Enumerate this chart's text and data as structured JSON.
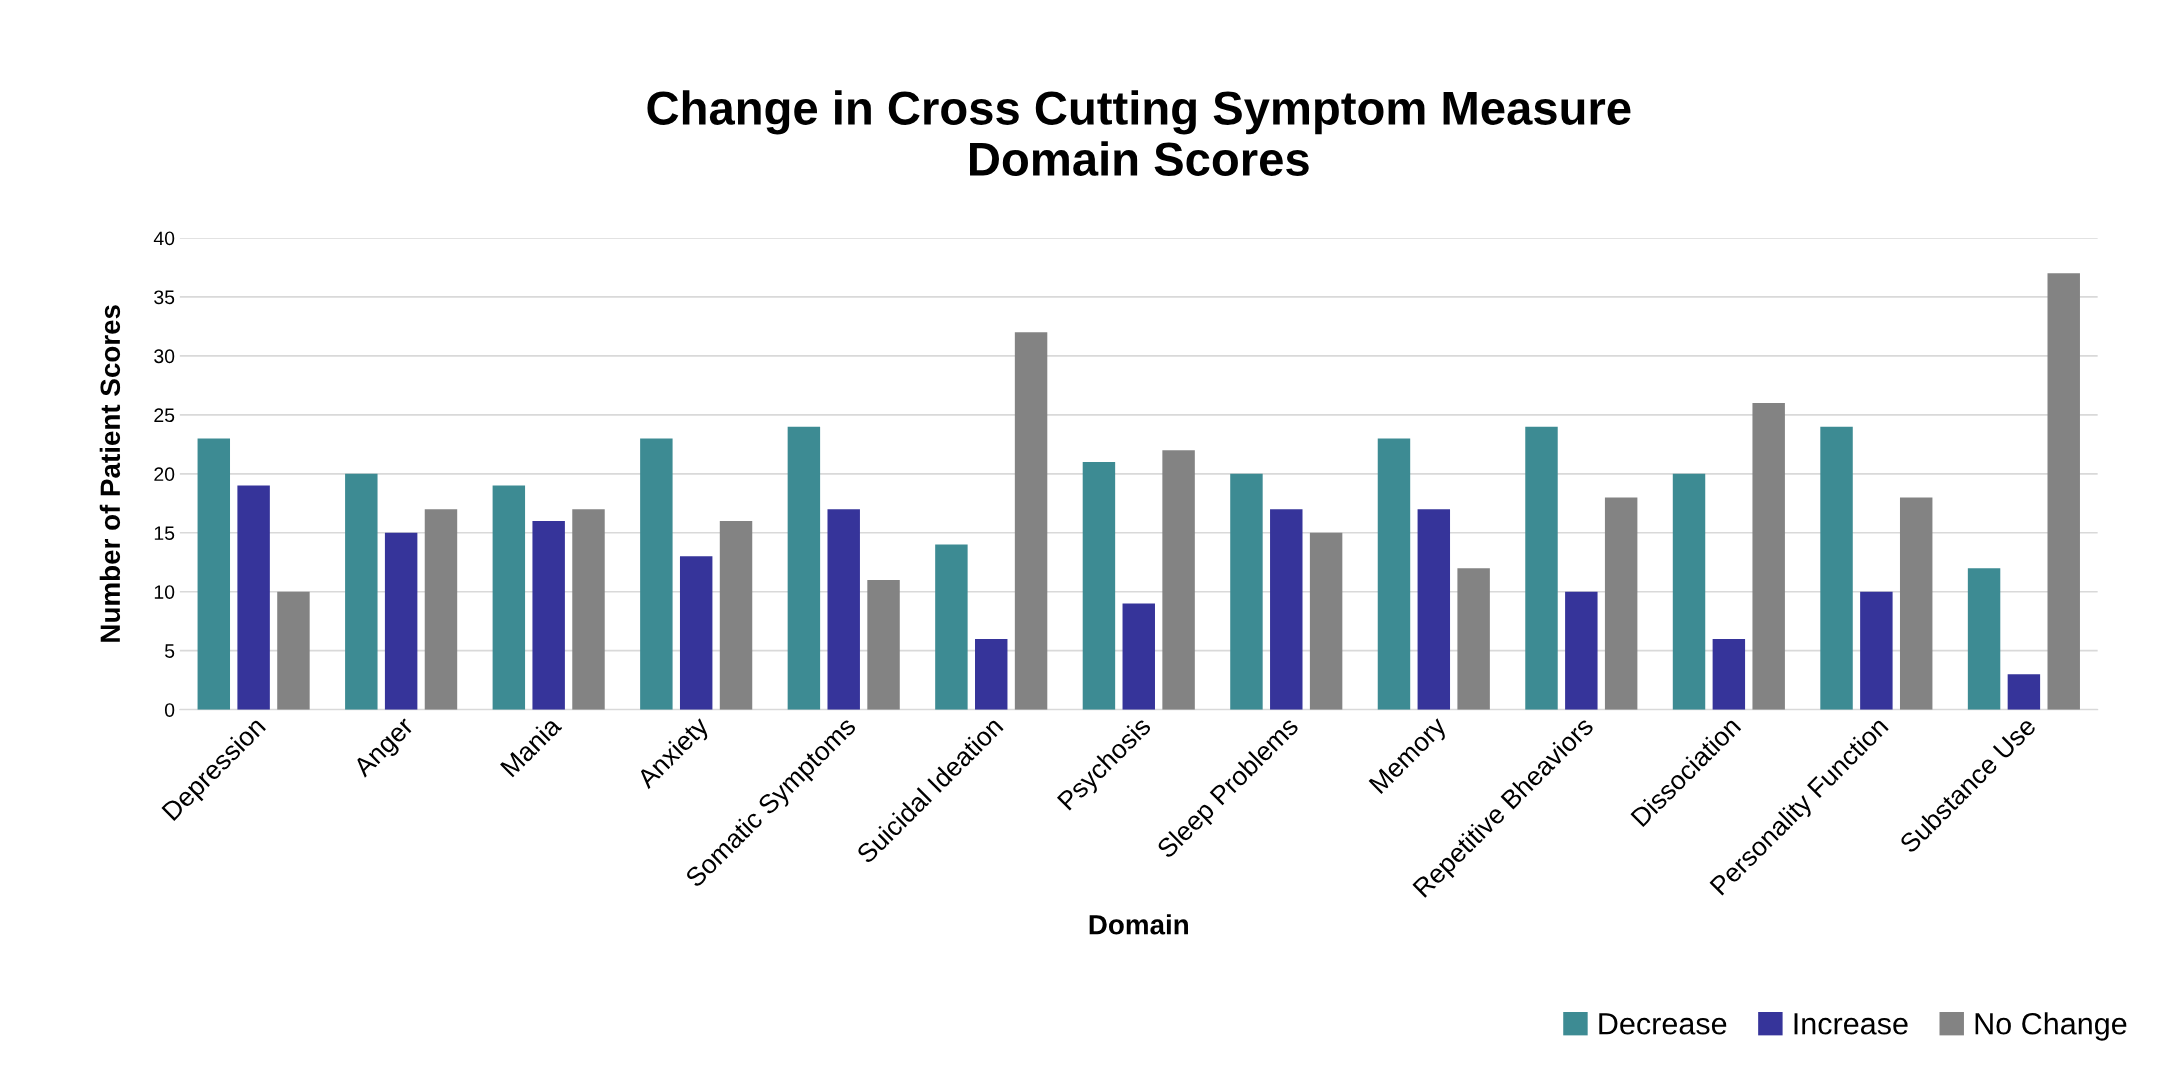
{
  "chart_data": {
    "type": "bar",
    "title": "Change in Cross Cutting Symptom Measure\nDomain Scores",
    "xlabel": "Domain",
    "ylabel": "Number of Patient Scores",
    "categories": [
      "Depression",
      "Anger",
      "Mania",
      "Anxiety",
      "Somatic Symptoms",
      "Suicidal Ideation",
      "Psychosis",
      "Sleep Problems",
      "Memory",
      "Repetitive Bheaviors",
      "Dissociation",
      "Personality Function",
      "Substance Use"
    ],
    "series": [
      {
        "name": "Decrease",
        "color": "#3d8b93",
        "values": [
          23,
          20,
          19,
          23,
          24,
          14,
          21,
          20,
          23,
          24,
          20,
          24,
          12
        ]
      },
      {
        "name": "Increase",
        "color": "#36349a",
        "values": [
          19,
          15,
          16,
          13,
          17,
          6,
          9,
          17,
          17,
          10,
          6,
          10,
          3
        ]
      },
      {
        "name": "No Change",
        "color": "#838383",
        "values": [
          10,
          17,
          17,
          16,
          11,
          32,
          22,
          15,
          12,
          18,
          26,
          18,
          37
        ]
      }
    ],
    "ylim": [
      0,
      40
    ],
    "yticks": [
      0,
      5,
      10,
      15,
      20,
      25,
      30,
      35,
      40
    ],
    "grid": "y",
    "legend": "bottom right"
  }
}
